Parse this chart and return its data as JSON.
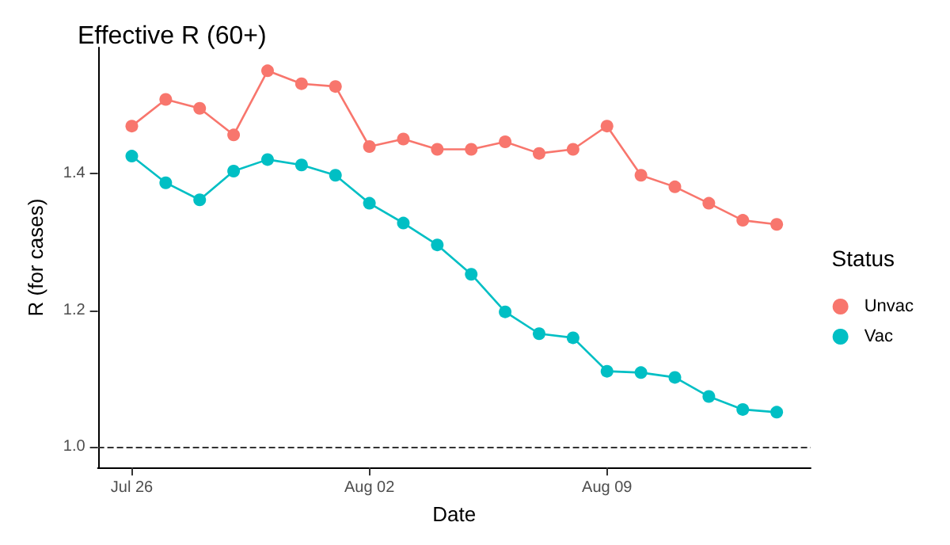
{
  "chart_data": {
    "type": "line",
    "title": "Effective R (60+)",
    "xlabel": "Date",
    "ylabel": "R (for cases)",
    "legend_title": "Status",
    "legend": "right",
    "grid": false,
    "marker": "circle",
    "line_style": "solid",
    "x": [
      "--07-26",
      "--07-27",
      "--07-28",
      "--07-29",
      "--07-30",
      "--07-31",
      "--08-01",
      "--08-02",
      "--08-03",
      "--08-04",
      "--08-05",
      "--08-06",
      "--08-07",
      "--08-08",
      "--08-09",
      "--08-10",
      "--08-11",
      "--08-12",
      "--08-13",
      "--08-14"
    ],
    "series": [
      {
        "name": "Unvac",
        "color": "#f8766d",
        "values": [
          1.47,
          1.509,
          1.496,
          1.457,
          1.551,
          1.532,
          1.528,
          1.44,
          1.451,
          1.436,
          1.436,
          1.447,
          1.43,
          1.436,
          1.47,
          1.398,
          1.381,
          1.357,
          1.332,
          1.326
        ]
      },
      {
        "name": "Vac",
        "color": "#00bfc4",
        "values": [
          1.426,
          1.387,
          1.362,
          1.404,
          1.421,
          1.413,
          1.398,
          1.357,
          1.328,
          1.296,
          1.253,
          1.198,
          1.166,
          1.16,
          1.111,
          1.109,
          1.102,
          1.074,
          1.055,
          1.051
        ]
      }
    ],
    "xlim": [
      "--07-25",
      "--08-15"
    ],
    "xticks": [
      {
        "value": "--07-26",
        "label": "Jul 26"
      },
      {
        "value": "--08-02",
        "label": "Aug 02"
      },
      {
        "value": "--08-09",
        "label": "Aug 09"
      }
    ],
    "ylim": [
      0.97,
      1.585
    ],
    "yticks": [
      {
        "value": 1.0,
        "label": "1.0"
      },
      {
        "value": 1.2,
        "label": "1.2"
      },
      {
        "value": 1.4,
        "label": "1.4"
      }
    ],
    "ref_lines": [
      {
        "axis": "y",
        "value": 1.0,
        "color": "#333333",
        "line_style": "dashed"
      }
    ]
  }
}
